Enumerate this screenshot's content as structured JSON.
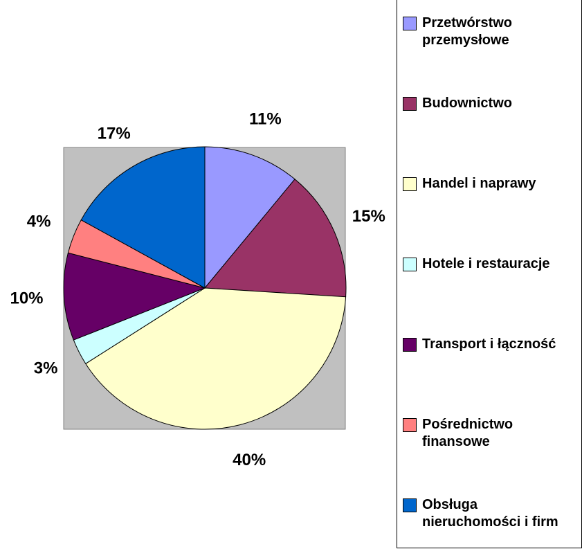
{
  "chart_data": {
    "type": "pie",
    "categories": [
      "Przetwórstwo przemysłowe",
      "Budownictwo",
      "Handel i naprawy",
      "Hotele i restauracje",
      "Transport i łączność",
      "Pośrednictwo finansowe",
      "Obsługa nieruchomości i firm"
    ],
    "values": [
      11,
      15,
      40,
      3,
      10,
      4,
      17
    ],
    "value_labels": [
      "11%",
      "15%",
      "40%",
      "3%",
      "10%",
      "4%",
      "17%"
    ],
    "colors": [
      "#9999ff",
      "#993366",
      "#ffffcc",
      "#ccffff",
      "#660066",
      "#ff8080",
      "#0066cc"
    ],
    "legend": "right"
  }
}
